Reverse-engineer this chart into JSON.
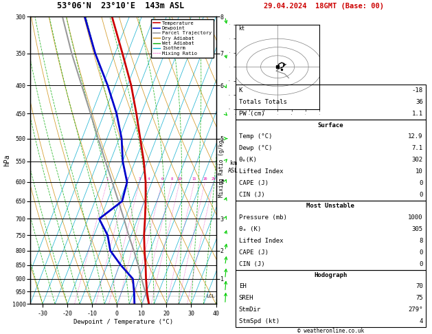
{
  "title_left": "53°06'N  23°10'E  143m ASL",
  "title_right": "29.04.2024  18GMT (Base: 00)",
  "xlabel": "Dewpoint / Temperature (°C)",
  "ylabel_left": "hPa",
  "pressure_levels": [
    300,
    350,
    400,
    450,
    500,
    550,
    600,
    650,
    700,
    750,
    800,
    850,
    900,
    950,
    1000
  ],
  "temp_profile_p": [
    1000,
    950,
    900,
    850,
    800,
    750,
    700,
    650,
    600,
    550,
    500,
    450,
    400,
    350,
    300
  ],
  "temp_profile_t": [
    12.9,
    10.2,
    7.8,
    5.5,
    2.8,
    0.2,
    -2.0,
    -4.5,
    -7.5,
    -11.5,
    -16.5,
    -22.0,
    -28.5,
    -37.0,
    -47.0
  ],
  "dewp_profile_p": [
    1000,
    950,
    900,
    850,
    800,
    750,
    700,
    650,
    600,
    550,
    500,
    450,
    400,
    350,
    300
  ],
  "dewp_profile_t": [
    7.1,
    5.0,
    2.5,
    -4.5,
    -11.0,
    -14.5,
    -20.5,
    -14.0,
    -15.0,
    -20.0,
    -24.0,
    -30.0,
    -38.0,
    -48.0,
    -58.0
  ],
  "parcel_profile_p": [
    1000,
    950,
    900,
    850,
    800,
    750,
    700,
    650,
    600,
    550,
    500,
    450,
    400,
    350,
    300
  ],
  "parcel_profile_t": [
    12.9,
    9.5,
    6.0,
    2.5,
    -1.5,
    -6.0,
    -10.5,
    -15.5,
    -21.0,
    -27.0,
    -33.5,
    -40.5,
    -48.5,
    -57.5,
    -67.0
  ],
  "temp_color": "#cc0000",
  "dewp_color": "#0000cc",
  "parcel_color": "#999999",
  "dry_adiabat_color": "#cc8800",
  "wet_adiabat_color": "#00aa00",
  "isotherm_color": "#00aacc",
  "mixing_ratio_color": "#dd00aa",
  "xlim": [
    -35,
    40
  ],
  "mixing_ratio_lines": [
    1,
    2,
    3,
    4,
    6,
    8,
    10,
    15,
    20,
    25
  ],
  "km_ticks": [
    1,
    2,
    3,
    4,
    5,
    6,
    7,
    8
  ],
  "km_pressures": [
    900,
    800,
    700,
    600,
    500,
    400,
    350,
    300
  ],
  "lcl_pressure": 968,
  "lcl_label": "LCL",
  "skew": 45,
  "copyright": "© weatheronline.co.uk",
  "K": -18,
  "Totals_Totals": 36,
  "PW_cm": 1.1,
  "surf_temp": 12.9,
  "surf_dewp": 7.1,
  "surf_thetae": 302,
  "surf_li": 10,
  "surf_cape": 0,
  "surf_cin": 0,
  "mu_pres": 1000,
  "mu_thetae": 305,
  "mu_li": 8,
  "mu_cape": 0,
  "mu_cin": 0,
  "hodo_eh": 70,
  "hodo_sreh": 75,
  "hodo_stmdir": "279°",
  "hodo_stmspd": 4
}
